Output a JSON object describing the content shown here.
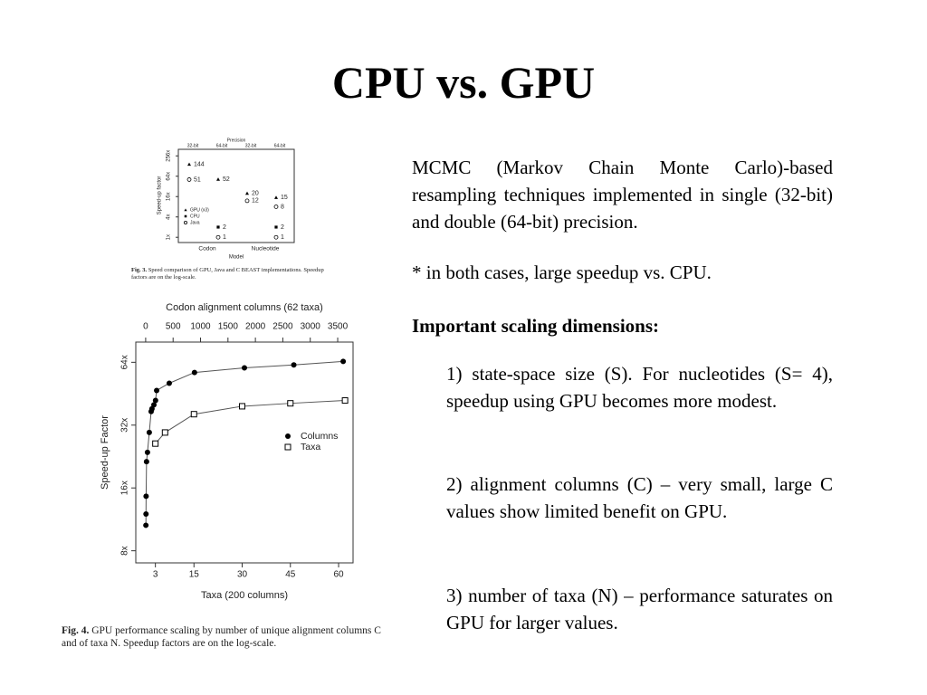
{
  "title": "CPU vs. GPU",
  "body": {
    "paragraphs": [
      "MCMC (Markov Chain Monte Carlo)-based resampling techniques implemented in single (32-bit) and double (64-bit) precision.",
      "* in both cases, large speedup vs. CPU."
    ],
    "heading": "Important scaling dimensions:",
    "items": [
      "1) state-space size (S). For nucleotides (S= 4), speedup using GPU becomes more modest.",
      "2) alignment columns (C) – very small, large C values show limited benefit on GPU.",
      "3) number of taxa (N) – performance saturates on GPU for larger values."
    ]
  },
  "chart_data": [
    {
      "type": "scatter",
      "caption_label": "Fig. 3.",
      "caption": "Speed comparison of GPU, Java and C BEAST implementations. Speedup factors are on the log-scale.",
      "x_label": "Model",
      "y_label": "Speed-up factor",
      "top_axis_label": "Precision",
      "categories": [
        "Codon",
        "Nucleotide"
      ],
      "top_categories": [
        "32-bit",
        "64-bit",
        "32-bit",
        "64-bit"
      ],
      "log_y": true,
      "ylim": [
        0.7,
        400
      ],
      "yticks": [
        {
          "value": 1,
          "label": "1x"
        },
        {
          "value": 4,
          "label": "4x"
        },
        {
          "value": 16,
          "label": "16x"
        },
        {
          "value": 64,
          "label": "64x"
        },
        {
          "value": 256,
          "label": "256x"
        }
      ],
      "series": [
        {
          "name": "GPU (x3)",
          "marker": "triangle",
          "color": "#000000",
          "values": [
            144,
            52,
            20,
            15
          ]
        },
        {
          "name": "CPU",
          "marker": "square",
          "color": "#000000",
          "values": [
            null,
            2,
            null,
            2
          ]
        },
        {
          "name": "Java",
          "marker": "circle-open",
          "color": "#000000",
          "values": [
            51,
            null,
            12,
            8
          ]
        },
        {
          "marker": "circle-open",
          "color": "#000000",
          "values": [
            null,
            1,
            null,
            1
          ]
        }
      ],
      "legend": "lower-left"
    },
    {
      "type": "line",
      "caption_label": "Fig. 4.",
      "caption": "GPU performance scaling by number of unique alignment columns C and of taxa N. Speedup factors are on the log-scale.",
      "x_label": "Taxa (200 columns)",
      "x2_label": "Codon alignment columns (62 taxa)",
      "y_label": "Speed-up Factor",
      "log_y": true,
      "xlim": [
        -3.1,
        64.5
      ],
      "xticks": [
        3,
        15,
        30,
        45,
        60
      ],
      "x2lim": [
        -180,
        3780
      ],
      "x2ticks": [
        0,
        500,
        1000,
        1500,
        2000,
        2500,
        3000,
        3500
      ],
      "ylim": [
        7,
        80
      ],
      "yticks": [
        {
          "value": 8,
          "label": "8x"
        },
        {
          "value": 16,
          "label": "16x"
        },
        {
          "value": 32,
          "label": "32x"
        },
        {
          "value": 64,
          "label": "64x"
        }
      ],
      "series": [
        {
          "name": "Columns",
          "marker": "circle",
          "color": "#000000",
          "axis": "x2",
          "x": [
            4,
            6,
            8,
            16,
            33,
            66,
            100,
            115,
            150,
            180,
            200,
            430,
            890,
            1800,
            2700,
            3600
          ],
          "values": [
            10.6,
            12.0,
            14.6,
            21.4,
            23.7,
            29.5,
            37.2,
            38.3,
            40.0,
            42.0,
            46.9,
            50.8,
            57.2,
            60.2,
            62.2,
            64.6
          ]
        },
        {
          "name": "Taxa",
          "marker": "square-open",
          "color": "#000000",
          "x": [
            3,
            6,
            15,
            30,
            45,
            62
          ],
          "values": [
            26.1,
            29.5,
            36.1,
            39.4,
            40.7,
            42.0
          ]
        }
      ],
      "legend": "right"
    }
  ]
}
